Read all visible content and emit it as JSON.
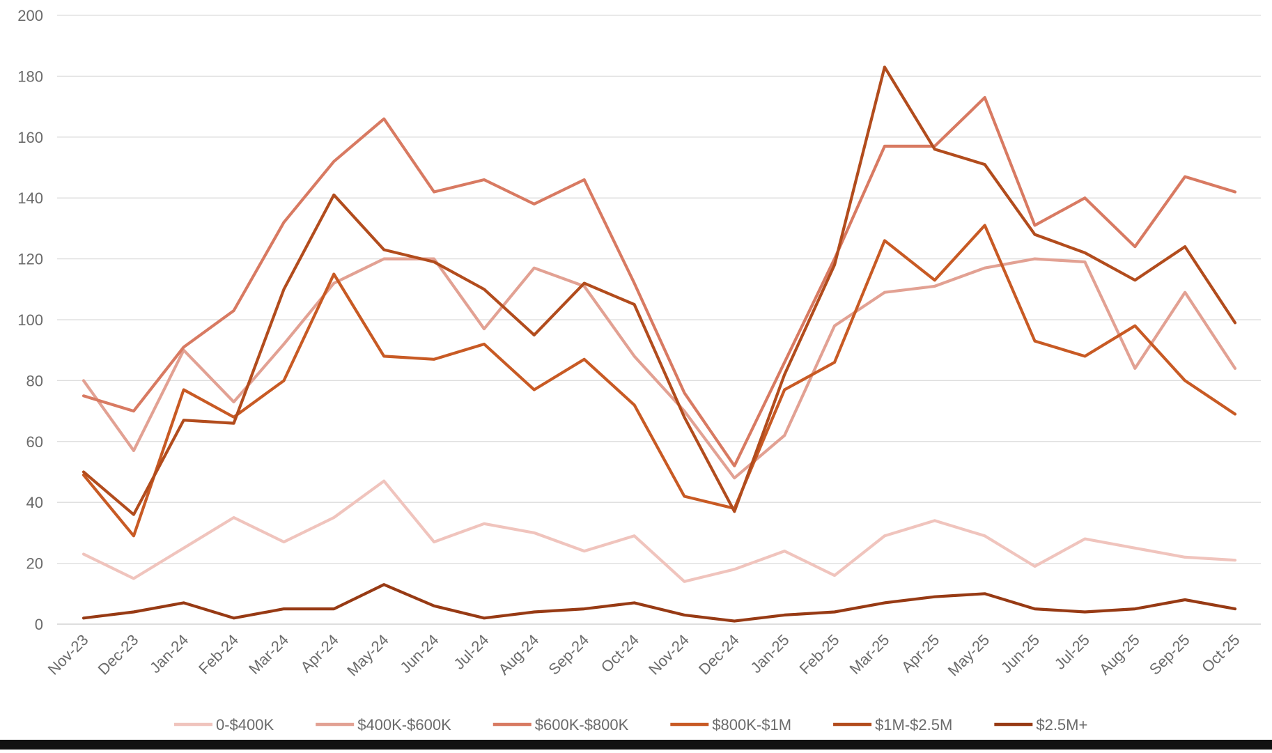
{
  "chart_data": {
    "type": "line",
    "title": "",
    "xlabel": "",
    "ylabel": "",
    "ylim": [
      0,
      200
    ],
    "yticks": [
      "0",
      "20",
      "40",
      "60",
      "80",
      "100",
      "120",
      "140",
      "160",
      "180",
      "200"
    ],
    "grid": true,
    "legend_position": "bottom",
    "categories": [
      "Nov-23",
      "Dec-23",
      "Jan-24",
      "Feb-24",
      "Mar-24",
      "Apr-24",
      "May-24",
      "Jun-24",
      "Jul-24",
      "Aug-24",
      "Sep-24",
      "Oct-24",
      "Nov-24",
      "Dec-24",
      "Jan-25",
      "Feb-25",
      "Mar-25",
      "Apr-25",
      "May-25",
      "Jun-25",
      "Jul-25",
      "Aug-25",
      "Sep-25",
      "Oct-25"
    ],
    "series": [
      {
        "name": "0-$400K",
        "color": "#f0c4bd",
        "values": [
          23,
          15,
          25,
          35,
          27,
          35,
          47,
          27,
          33,
          30,
          24,
          29,
          14,
          18,
          24,
          16,
          29,
          34,
          29,
          19,
          28,
          25,
          22,
          21
        ]
      },
      {
        "name": "$400K-$600K",
        "color": "#e2a193",
        "values": [
          80,
          57,
          90,
          73,
          92,
          112,
          120,
          120,
          97,
          117,
          111,
          88,
          70,
          48,
          62,
          98,
          109,
          111,
          117,
          120,
          119,
          84,
          109,
          84
        ]
      },
      {
        "name": "$600K-$800K",
        "color": "#d87a62",
        "values": [
          75,
          70,
          91,
          103,
          132,
          152,
          166,
          142,
          146,
          138,
          146,
          112,
          76,
          52,
          86,
          120,
          157,
          157,
          173,
          131,
          140,
          124,
          147,
          142
        ]
      },
      {
        "name": "$800K-$1M",
        "color": "#c85a24",
        "values": [
          49,
          29,
          77,
          68,
          80,
          115,
          88,
          87,
          92,
          77,
          87,
          72,
          42,
          38,
          77,
          86,
          126,
          113,
          131,
          93,
          88,
          98,
          80,
          69
        ]
      },
      {
        "name": "$1M-$2.5M",
        "color": "#b24c1d",
        "values": [
          50,
          36,
          67,
          66,
          110,
          141,
          123,
          119,
          110,
          95,
          112,
          105,
          68,
          37,
          82,
          118,
          183,
          156,
          151,
          128,
          122,
          113,
          124,
          99
        ]
      },
      {
        "name": "$2.5M+",
        "color": "#973a14",
        "values": [
          2,
          4,
          7,
          2,
          5,
          5,
          13,
          6,
          2,
          4,
          5,
          7,
          3,
          1,
          3,
          4,
          7,
          9,
          10,
          5,
          4,
          5,
          8,
          5
        ]
      }
    ]
  }
}
